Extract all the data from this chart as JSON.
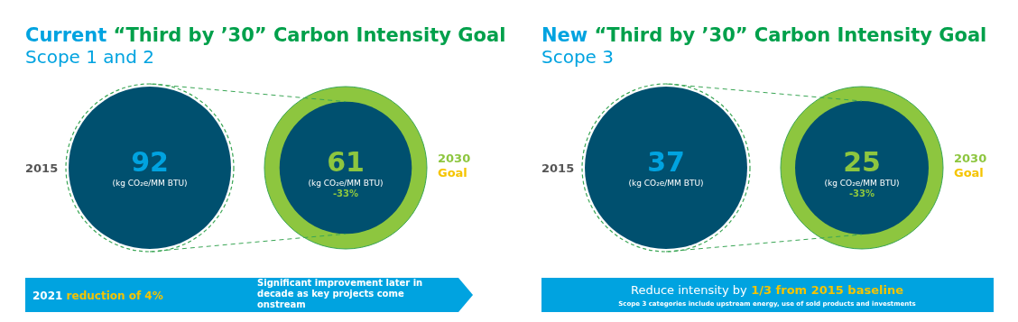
{
  "chart_data": [
    {
      "type": "other",
      "title": "Current “Third by ’30” Carbon Intensity Goal",
      "subtitle": "Scope 1 and 2",
      "ylabel": "(kg CO₂e/MM BTU)",
      "categories": [
        "2015",
        "2030 Goal"
      ],
      "values": [
        92,
        61
      ],
      "colors": [
        "#00506f",
        "#00506f"
      ],
      "annotations": [
        "2021",
        "reduction of 4%",
        "Significant improvement later in decade as key projects come onstream",
        {
          "text": "-33%",
          "x": "2030 Goal"
        }
      ],
      "data_labels": true
    },
    {
      "type": "other",
      "title": "New “Third by ’30” Carbon Intensity Goal",
      "subtitle": "Scope 3",
      "ylabel": "(kg CO₂e/MM BTU)",
      "categories": [
        "2015",
        "2030 Goal"
      ],
      "values": [
        37,
        25
      ],
      "colors": [
        "#00506f",
        "#00506f"
      ],
      "annotations": [
        "Reduce intensity by",
        "1/3 from 2015 baseline",
        "Scope 3 categories include upstream energy, use of sold products and investments",
        {
          "text": "-33%",
          "x": "2030 Goal"
        }
      ],
      "data_labels": true
    }
  ]
}
